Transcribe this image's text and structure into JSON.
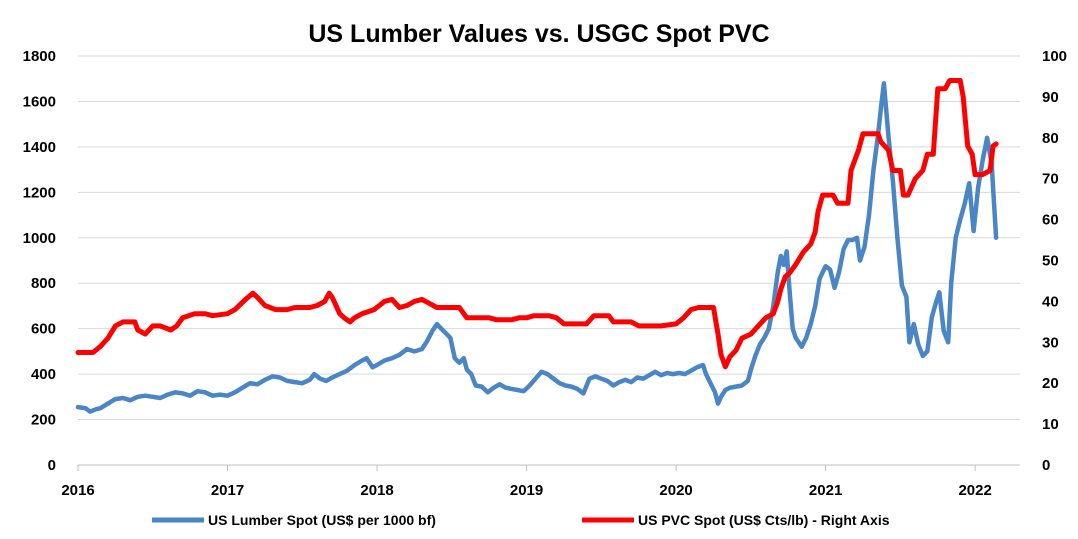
{
  "chart_data": {
    "type": "line",
    "title": "US Lumber Values vs. USGC Spot PVC",
    "xlabel": "",
    "ylabel": "",
    "xlim": [
      2016.0,
      2022.3
    ],
    "x_ticks": [
      2016,
      2017,
      2018,
      2019,
      2020,
      2021,
      2022
    ],
    "x_tick_labels": [
      "2016",
      "2017",
      "2018",
      "2019",
      "2020",
      "2021",
      "2022"
    ],
    "left_axis": {
      "min": 0,
      "max": 1800,
      "step": 200,
      "tick_labels": [
        "0",
        "200",
        "400",
        "600",
        "800",
        "1000",
        "1200",
        "1400",
        "1600",
        "1800"
      ]
    },
    "right_axis": {
      "min": 0,
      "max": 100,
      "step": 10,
      "tick_labels": [
        "0",
        "10",
        "20",
        "30",
        "40",
        "50",
        "60",
        "70",
        "80",
        "90",
        "100"
      ]
    },
    "grid": "horizontal",
    "legend_position": "bottom",
    "series": [
      {
        "name": "US Lumber Spot (US$ per 1000 bf)",
        "axis": "left",
        "color": "#4a86c5",
        "points": [
          [
            2016.0,
            255
          ],
          [
            2016.05,
            250
          ],
          [
            2016.08,
            235
          ],
          [
            2016.12,
            245
          ],
          [
            2016.15,
            250
          ],
          [
            2016.2,
            270
          ],
          [
            2016.25,
            290
          ],
          [
            2016.3,
            295
          ],
          [
            2016.35,
            285
          ],
          [
            2016.4,
            300
          ],
          [
            2016.45,
            305
          ],
          [
            2016.5,
            300
          ],
          [
            2016.55,
            295
          ],
          [
            2016.6,
            310
          ],
          [
            2016.65,
            320
          ],
          [
            2016.7,
            315
          ],
          [
            2016.75,
            305
          ],
          [
            2016.8,
            325
          ],
          [
            2016.85,
            320
          ],
          [
            2016.9,
            305
          ],
          [
            2016.95,
            310
          ],
          [
            2017.0,
            305
          ],
          [
            2017.05,
            320
          ],
          [
            2017.1,
            340
          ],
          [
            2017.15,
            360
          ],
          [
            2017.2,
            355
          ],
          [
            2017.25,
            375
          ],
          [
            2017.3,
            390
          ],
          [
            2017.35,
            385
          ],
          [
            2017.4,
            370
          ],
          [
            2017.45,
            365
          ],
          [
            2017.5,
            360
          ],
          [
            2017.55,
            375
          ],
          [
            2017.58,
            400
          ],
          [
            2017.62,
            380
          ],
          [
            2017.66,
            370
          ],
          [
            2017.7,
            385
          ],
          [
            2017.75,
            400
          ],
          [
            2017.8,
            415
          ],
          [
            2017.85,
            440
          ],
          [
            2017.9,
            460
          ],
          [
            2017.93,
            470
          ],
          [
            2017.97,
            430
          ],
          [
            2018.0,
            440
          ],
          [
            2018.05,
            460
          ],
          [
            2018.1,
            470
          ],
          [
            2018.15,
            485
          ],
          [
            2018.2,
            510
          ],
          [
            2018.25,
            500
          ],
          [
            2018.3,
            510
          ],
          [
            2018.33,
            540
          ],
          [
            2018.37,
            590
          ],
          [
            2018.4,
            620
          ],
          [
            2018.43,
            600
          ],
          [
            2018.46,
            580
          ],
          [
            2018.49,
            560
          ],
          [
            2018.52,
            470
          ],
          [
            2018.55,
            450
          ],
          [
            2018.58,
            470
          ],
          [
            2018.6,
            420
          ],
          [
            2018.63,
            400
          ],
          [
            2018.66,
            350
          ],
          [
            2018.7,
            345
          ],
          [
            2018.74,
            320
          ],
          [
            2018.78,
            340
          ],
          [
            2018.82,
            355
          ],
          [
            2018.86,
            340
          ],
          [
            2018.9,
            335
          ],
          [
            2018.94,
            330
          ],
          [
            2018.98,
            325
          ],
          [
            2019.02,
            350
          ],
          [
            2019.06,
            380
          ],
          [
            2019.1,
            410
          ],
          [
            2019.14,
            400
          ],
          [
            2019.18,
            380
          ],
          [
            2019.22,
            360
          ],
          [
            2019.26,
            350
          ],
          [
            2019.3,
            345
          ],
          [
            2019.34,
            335
          ],
          [
            2019.38,
            315
          ],
          [
            2019.42,
            380
          ],
          [
            2019.46,
            390
          ],
          [
            2019.5,
            380
          ],
          [
            2019.54,
            370
          ],
          [
            2019.58,
            350
          ],
          [
            2019.62,
            365
          ],
          [
            2019.66,
            375
          ],
          [
            2019.7,
            365
          ],
          [
            2019.74,
            385
          ],
          [
            2019.78,
            380
          ],
          [
            2019.82,
            395
          ],
          [
            2019.86,
            410
          ],
          [
            2019.9,
            395
          ],
          [
            2019.94,
            405
          ],
          [
            2019.98,
            400
          ],
          [
            2020.02,
            405
          ],
          [
            2020.06,
            400
          ],
          [
            2020.1,
            415
          ],
          [
            2020.14,
            430
          ],
          [
            2020.18,
            440
          ],
          [
            2020.2,
            400
          ],
          [
            2020.23,
            360
          ],
          [
            2020.26,
            320
          ],
          [
            2020.28,
            270
          ],
          [
            2020.3,
            300
          ],
          [
            2020.33,
            330
          ],
          [
            2020.36,
            340
          ],
          [
            2020.4,
            345
          ],
          [
            2020.44,
            350
          ],
          [
            2020.48,
            370
          ],
          [
            2020.5,
            420
          ],
          [
            2020.53,
            480
          ],
          [
            2020.56,
            530
          ],
          [
            2020.59,
            560
          ],
          [
            2020.62,
            600
          ],
          [
            2020.65,
            700
          ],
          [
            2020.68,
            850
          ],
          [
            2020.7,
            920
          ],
          [
            2020.72,
            880
          ],
          [
            2020.74,
            940
          ],
          [
            2020.76,
            760
          ],
          [
            2020.78,
            600
          ],
          [
            2020.8,
            560
          ],
          [
            2020.84,
            520
          ],
          [
            2020.87,
            560
          ],
          [
            2020.9,
            620
          ],
          [
            2020.93,
            700
          ],
          [
            2020.96,
            820
          ],
          [
            2021.0,
            875
          ],
          [
            2021.03,
            860
          ],
          [
            2021.06,
            780
          ],
          [
            2021.09,
            850
          ],
          [
            2021.12,
            950
          ],
          [
            2021.15,
            990
          ],
          [
            2021.18,
            990
          ],
          [
            2021.21,
            1000
          ],
          [
            2021.23,
            900
          ],
          [
            2021.26,
            960
          ],
          [
            2021.29,
            1100
          ],
          [
            2021.32,
            1300
          ],
          [
            2021.35,
            1450
          ],
          [
            2021.37,
            1570
          ],
          [
            2021.39,
            1680
          ],
          [
            2021.42,
            1450
          ],
          [
            2021.45,
            1250
          ],
          [
            2021.48,
            1000
          ],
          [
            2021.51,
            790
          ],
          [
            2021.54,
            740
          ],
          [
            2021.56,
            540
          ],
          [
            2021.59,
            620
          ],
          [
            2021.62,
            530
          ],
          [
            2021.65,
            480
          ],
          [
            2021.68,
            500
          ],
          [
            2021.71,
            650
          ],
          [
            2021.74,
            720
          ],
          [
            2021.76,
            760
          ],
          [
            2021.79,
            590
          ],
          [
            2021.82,
            540
          ],
          [
            2021.84,
            800
          ],
          [
            2021.87,
            1000
          ],
          [
            2021.9,
            1080
          ],
          [
            2021.93,
            1150
          ],
          [
            2021.96,
            1240
          ],
          [
            2021.99,
            1030
          ],
          [
            2022.02,
            1220
          ],
          [
            2022.05,
            1340
          ],
          [
            2022.08,
            1440
          ],
          [
            2022.11,
            1330
          ],
          [
            2022.14,
            1000
          ]
        ]
      },
      {
        "name": "US PVC Spot (US$ Cts/lb) - Right Axis",
        "axis": "right",
        "color": "#ff0000",
        "points": [
          [
            2016.0,
            27.5
          ],
          [
            2016.1,
            27.5
          ],
          [
            2016.15,
            29
          ],
          [
            2016.2,
            31
          ],
          [
            2016.25,
            34
          ],
          [
            2016.3,
            35
          ],
          [
            2016.38,
            35
          ],
          [
            2016.4,
            33
          ],
          [
            2016.45,
            32
          ],
          [
            2016.5,
            34
          ],
          [
            2016.55,
            34
          ],
          [
            2016.62,
            33
          ],
          [
            2016.66,
            34
          ],
          [
            2016.7,
            36
          ],
          [
            2016.78,
            37
          ],
          [
            2016.85,
            37
          ],
          [
            2016.9,
            36.5
          ],
          [
            2017.0,
            37
          ],
          [
            2017.05,
            38
          ],
          [
            2017.12,
            40.5
          ],
          [
            2017.17,
            42
          ],
          [
            2017.2,
            41
          ],
          [
            2017.25,
            39
          ],
          [
            2017.32,
            38
          ],
          [
            2017.4,
            38
          ],
          [
            2017.45,
            38.5
          ],
          [
            2017.55,
            38.5
          ],
          [
            2017.6,
            39
          ],
          [
            2017.65,
            40
          ],
          [
            2017.68,
            42
          ],
          [
            2017.7,
            41
          ],
          [
            2017.75,
            37
          ],
          [
            2017.78,
            36
          ],
          [
            2017.82,
            35
          ],
          [
            2017.85,
            36
          ],
          [
            2017.9,
            37
          ],
          [
            2017.98,
            38
          ],
          [
            2018.05,
            40
          ],
          [
            2018.1,
            40.5
          ],
          [
            2018.15,
            38.5
          ],
          [
            2018.2,
            39
          ],
          [
            2018.25,
            40
          ],
          [
            2018.3,
            40.5
          ],
          [
            2018.35,
            39.5
          ],
          [
            2018.4,
            38.5
          ],
          [
            2018.45,
            38.5
          ],
          [
            2018.55,
            38.5
          ],
          [
            2018.6,
            36
          ],
          [
            2018.65,
            36
          ],
          [
            2018.75,
            36
          ],
          [
            2018.8,
            35.5
          ],
          [
            2018.9,
            35.5
          ],
          [
            2018.95,
            36
          ],
          [
            2019.0,
            36
          ],
          [
            2019.05,
            36.5
          ],
          [
            2019.15,
            36.5
          ],
          [
            2019.2,
            36
          ],
          [
            2019.25,
            34.5
          ],
          [
            2019.4,
            34.5
          ],
          [
            2019.45,
            36.5
          ],
          [
            2019.55,
            36.5
          ],
          [
            2019.58,
            35
          ],
          [
            2019.7,
            35
          ],
          [
            2019.75,
            34
          ],
          [
            2019.85,
            34
          ],
          [
            2019.9,
            34
          ],
          [
            2020.0,
            34.5
          ],
          [
            2020.05,
            36
          ],
          [
            2020.1,
            38
          ],
          [
            2020.15,
            38.5
          ],
          [
            2020.25,
            38.5
          ],
          [
            2020.28,
            32
          ],
          [
            2020.3,
            27
          ],
          [
            2020.33,
            24
          ],
          [
            2020.36,
            26.5
          ],
          [
            2020.4,
            28
          ],
          [
            2020.44,
            31
          ],
          [
            2020.5,
            32
          ],
          [
            2020.55,
            34
          ],
          [
            2020.6,
            36
          ],
          [
            2020.65,
            37
          ],
          [
            2020.68,
            40
          ],
          [
            2020.7,
            43
          ],
          [
            2020.73,
            46
          ],
          [
            2020.76,
            47
          ],
          [
            2020.8,
            49
          ],
          [
            2020.85,
            52
          ],
          [
            2020.9,
            54
          ],
          [
            2020.93,
            57
          ],
          [
            2020.95,
            62
          ],
          [
            2020.98,
            66
          ],
          [
            2021.05,
            66
          ],
          [
            2021.08,
            64
          ],
          [
            2021.15,
            64
          ],
          [
            2021.17,
            72
          ],
          [
            2021.22,
            77
          ],
          [
            2021.25,
            81
          ],
          [
            2021.35,
            81
          ],
          [
            2021.37,
            79
          ],
          [
            2021.42,
            77
          ],
          [
            2021.45,
            72
          ],
          [
            2021.5,
            72
          ],
          [
            2021.52,
            66
          ],
          [
            2021.55,
            66
          ],
          [
            2021.6,
            70
          ],
          [
            2021.65,
            72
          ],
          [
            2021.68,
            76
          ],
          [
            2021.72,
            76
          ],
          [
            2021.75,
            92
          ],
          [
            2021.8,
            92
          ],
          [
            2021.83,
            94
          ],
          [
            2021.9,
            94
          ],
          [
            2021.92,
            90
          ],
          [
            2021.95,
            78
          ],
          [
            2021.98,
            76
          ],
          [
            2022.0,
            71
          ],
          [
            2022.05,
            71
          ],
          [
            2022.1,
            72
          ],
          [
            2022.12,
            78
          ],
          [
            2022.14,
            78.5
          ]
        ]
      }
    ]
  }
}
